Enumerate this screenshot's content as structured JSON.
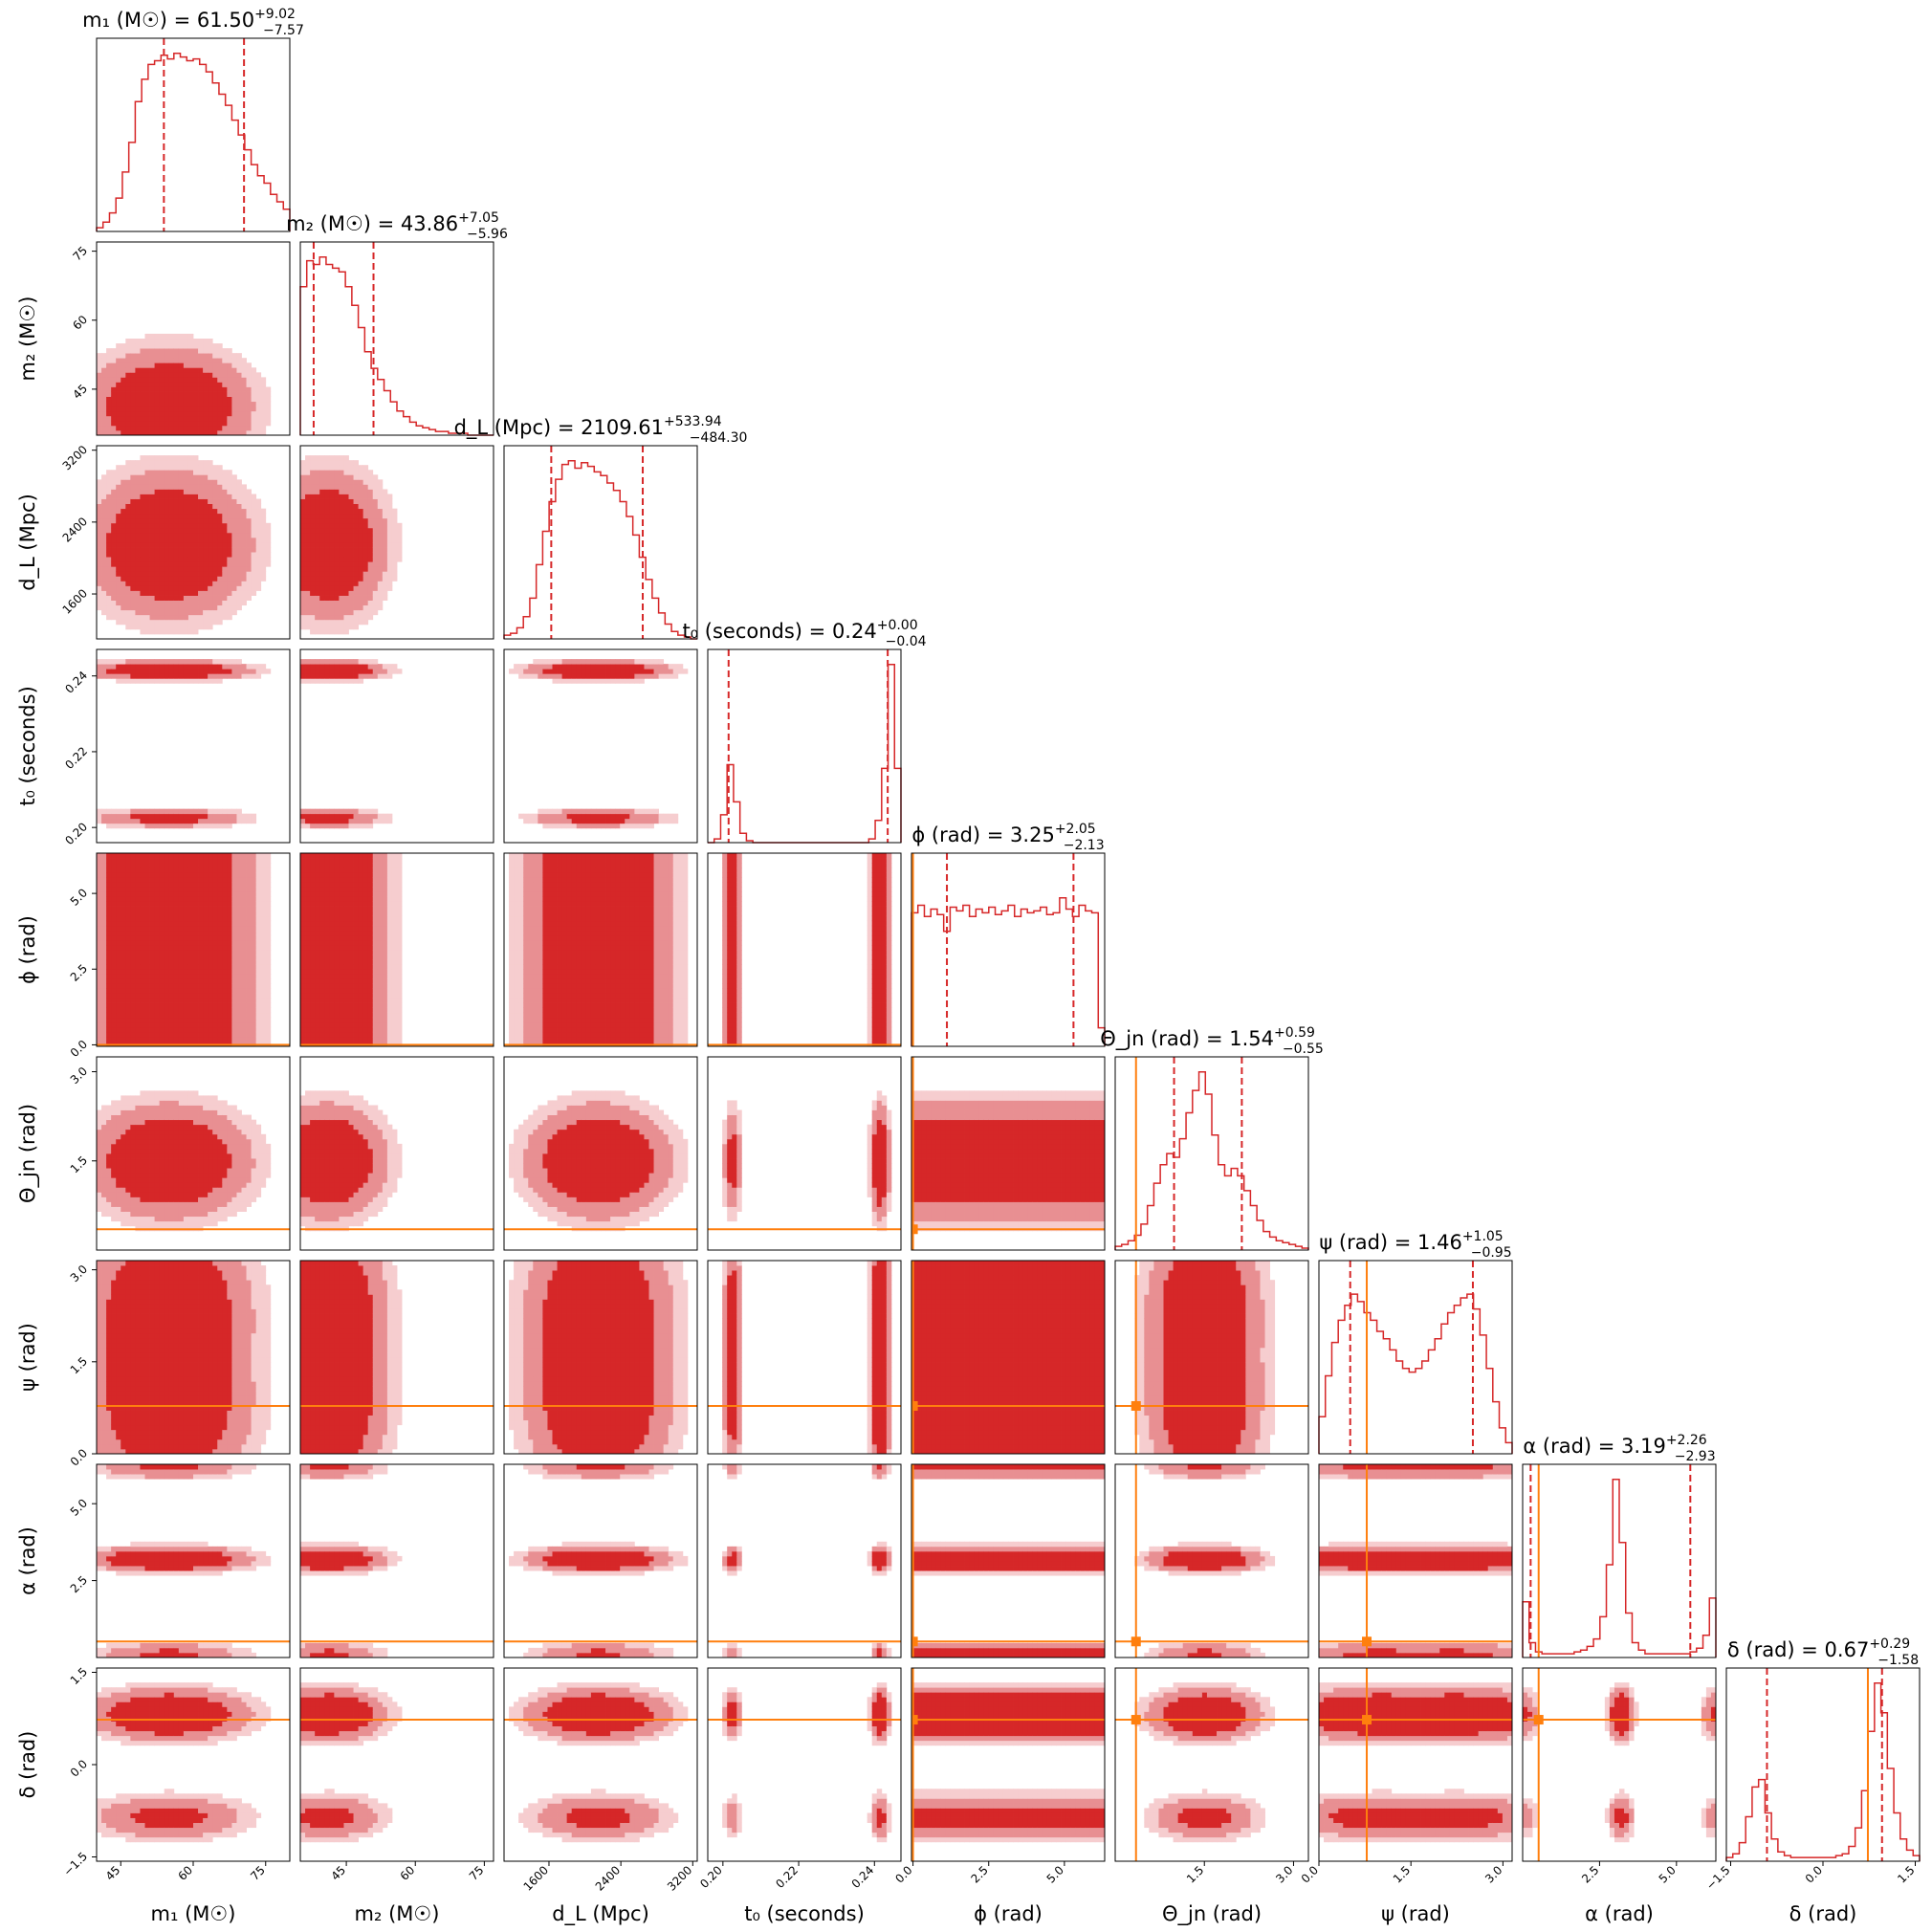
{
  "chart_data": {
    "type": "corner",
    "colors": {
      "posterior": "#d62728",
      "truth": "#ff7f0e"
    },
    "parameters": [
      {
        "key": "m1",
        "label": "m₁ (M☉)",
        "title": "m₁ (M☉) = 61.50",
        "median": 61.5,
        "plus": "+9.02",
        "minus": "−7.57",
        "range": [
          40,
          80
        ],
        "ticks": [
          45,
          60,
          75
        ],
        "tick_labels": [
          "45",
          "60",
          "75"
        ],
        "q_lo": 53.93,
        "q_hi": 70.52,
        "truth": null,
        "hist": [
          0.02,
          0.05,
          0.1,
          0.18,
          0.32,
          0.48,
          0.7,
          0.82,
          0.9,
          0.92,
          0.95,
          0.93,
          0.96,
          0.94,
          0.92,
          0.93,
          0.9,
          0.86,
          0.8,
          0.74,
          0.68,
          0.6,
          0.52,
          0.44,
          0.36,
          0.3,
          0.26,
          0.2,
          0.16,
          0.12
        ],
        "modes": [
          {
            "m": 55,
            "s": 8,
            "w": 1
          }
        ]
      },
      {
        "key": "m2",
        "label": "m₂ (M☉)",
        "title": "m₂ (M☉) = 43.86",
        "median": 43.86,
        "plus": "+7.05",
        "minus": "−5.96",
        "range": [
          35,
          77
        ],
        "ticks": [
          45,
          60,
          75
        ],
        "tick_labels": [
          "45",
          "60",
          "75"
        ],
        "q_lo": 37.9,
        "q_hi": 50.91,
        "truth": null,
        "hist": [
          0.8,
          0.94,
          0.92,
          0.96,
          0.92,
          0.9,
          0.88,
          0.8,
          0.7,
          0.58,
          0.45,
          0.36,
          0.3,
          0.24,
          0.18,
          0.13,
          0.1,
          0.07,
          0.05,
          0.04,
          0.03,
          0.02,
          0.02,
          0.01,
          0.01,
          0.01,
          0.0,
          0.0,
          0.0,
          0.0
        ],
        "modes": [
          {
            "m": 41,
            "s": 6,
            "w": 1
          }
        ]
      },
      {
        "key": "dL",
        "label": "d_L (Mpc)",
        "title": "d_L (Mpc) = 2109.61",
        "median": 2109.61,
        "plus": "+533.94",
        "minus": "−484.30",
        "range": [
          1100,
          3250
        ],
        "ticks": [
          1600,
          2400,
          3200
        ],
        "tick_labels": [
          "1600",
          "2400",
          "3200"
        ],
        "q_lo": 1625.31,
        "q_hi": 2643.55,
        "truth": null,
        "hist": [
          0.02,
          0.03,
          0.06,
          0.12,
          0.22,
          0.4,
          0.58,
          0.74,
          0.86,
          0.94,
          0.96,
          0.92,
          0.95,
          0.93,
          0.9,
          0.88,
          0.84,
          0.8,
          0.74,
          0.66,
          0.56,
          0.44,
          0.32,
          0.22,
          0.14,
          0.08,
          0.04,
          0.02,
          0.01,
          0.0
        ],
        "modes": [
          {
            "m": 2150,
            "s": 380,
            "w": 1
          }
        ]
      },
      {
        "key": "t0",
        "label": "t₀ (seconds)",
        "title": "t₀ (seconds) = 0.24",
        "median": 0.24,
        "plus": "+0.00",
        "minus": "−0.04",
        "range": [
          0.196,
          0.247
        ],
        "ticks": [
          0.2,
          0.22,
          0.24
        ],
        "tick_labels": [
          "0.20",
          "0.22",
          "0.24"
        ],
        "q_lo": 0.2015,
        "q_hi": 0.2435,
        "truth": null,
        "hist": [
          0.0,
          0.02,
          0.15,
          0.42,
          0.22,
          0.05,
          0.01,
          0.0,
          0.0,
          0.0,
          0.0,
          0.0,
          0.0,
          0.0,
          0.0,
          0.0,
          0.0,
          0.0,
          0.0,
          0.0,
          0.0,
          0.0,
          0.0,
          0.0,
          0.0,
          0.02,
          0.12,
          0.4,
          0.96,
          0.4
        ],
        "modes": [
          {
            "m": 0.2025,
            "s": 0.0012,
            "w": 0.45
          },
          {
            "m": 0.2415,
            "s": 0.0012,
            "w": 1
          }
        ]
      },
      {
        "key": "phi",
        "label": "ϕ (rad)",
        "title": "ϕ (rad) = 3.25",
        "median": 3.25,
        "plus": "+2.05",
        "minus": "−2.13",
        "range": [
          -0.05,
          6.33
        ],
        "ticks": [
          0.0,
          2.5,
          5.0
        ],
        "tick_labels": [
          "0.0",
          "2.5",
          "5.0"
        ],
        "q_lo": 1.12,
        "q_hi": 5.3,
        "truth": 0.0,
        "hist": [
          0.72,
          0.76,
          0.7,
          0.74,
          0.71,
          0.62,
          0.75,
          0.73,
          0.76,
          0.7,
          0.74,
          0.72,
          0.75,
          0.71,
          0.73,
          0.76,
          0.7,
          0.74,
          0.72,
          0.73,
          0.75,
          0.71,
          0.72,
          0.8,
          0.74,
          0.7,
          0.76,
          0.73,
          0.72,
          0.1
        ],
        "modes": [
          {
            "m": 3.1,
            "s": 100,
            "w": 1
          }
        ]
      },
      {
        "key": "theta",
        "label": "Θ_jn (rad)",
        "title": "Θ_jn (rad) = 1.54",
        "median": 1.54,
        "plus": "+0.59",
        "minus": "−0.55",
        "range": [
          0.0,
          3.25
        ],
        "ticks": [
          1.5,
          3.0
        ],
        "tick_labels": [
          "1.5",
          "3.0"
        ],
        "q_lo": 0.99,
        "q_hi": 2.13,
        "truth": 0.35,
        "hist": [
          0.02,
          0.03,
          0.05,
          0.08,
          0.14,
          0.24,
          0.36,
          0.46,
          0.52,
          0.5,
          0.6,
          0.74,
          0.86,
          0.96,
          0.84,
          0.62,
          0.46,
          0.4,
          0.44,
          0.4,
          0.32,
          0.24,
          0.16,
          0.1,
          0.07,
          0.05,
          0.04,
          0.03,
          0.02,
          0.01
        ],
        "modes": [
          {
            "m": 1.5,
            "s": 0.45,
            "w": 1
          }
        ]
      },
      {
        "key": "psi",
        "label": "ψ (rad)",
        "title": "ψ (rad) = 1.46",
        "median": 1.46,
        "plus": "+1.05",
        "minus": "−0.95",
        "range": [
          0.0,
          3.15
        ],
        "ticks": [
          0.0,
          1.5,
          3.0
        ],
        "tick_labels": [
          "0.0",
          "1.5",
          "3.0"
        ],
        "q_lo": 0.51,
        "q_hi": 2.51,
        "truth": 0.78,
        "hist": [
          0.2,
          0.42,
          0.6,
          0.72,
          0.8,
          0.86,
          0.82,
          0.76,
          0.72,
          0.66,
          0.62,
          0.56,
          0.5,
          0.46,
          0.44,
          0.46,
          0.5,
          0.56,
          0.62,
          0.7,
          0.76,
          0.8,
          0.84,
          0.86,
          0.78,
          0.64,
          0.46,
          0.28,
          0.14,
          0.06
        ],
        "modes": [
          {
            "m": 0.8,
            "s": 0.7,
            "w": 1
          },
          {
            "m": 2.4,
            "s": 0.7,
            "w": 1
          }
        ]
      },
      {
        "key": "alpha",
        "label": "α (rad)",
        "title": "α (rad) = 3.19",
        "median": 3.19,
        "plus": "+2.26",
        "minus": "−2.93",
        "range": [
          0.0,
          6.28
        ],
        "ticks": [
          2.5,
          5.0
        ],
        "tick_labels": [
          "2.5",
          "5.0"
        ],
        "q_lo": 0.26,
        "q_hi": 5.45,
        "truth": 0.52,
        "hist": [
          0.3,
          0.08,
          0.03,
          0.02,
          0.02,
          0.02,
          0.02,
          0.02,
          0.03,
          0.04,
          0.06,
          0.1,
          0.22,
          0.5,
          0.96,
          0.62,
          0.24,
          0.08,
          0.04,
          0.02,
          0.02,
          0.02,
          0.02,
          0.02,
          0.02,
          0.02,
          0.03,
          0.05,
          0.12,
          0.32
        ],
        "modes": [
          {
            "m": 3.2,
            "s": 0.2,
            "w": 1
          },
          {
            "m": 0.1,
            "s": 0.2,
            "w": 0.35
          },
          {
            "m": 6.2,
            "s": 0.2,
            "w": 0.35
          }
        ]
      },
      {
        "key": "delta",
        "label": "δ (rad)",
        "title": "δ (rad) = 0.67",
        "median": 0.67,
        "plus": "+0.29",
        "minus": "−1.58",
        "range": [
          -1.57,
          1.57
        ],
        "ticks": [
          -1.5,
          0.0,
          1.5
        ],
        "tick_labels": [
          "−1.5",
          "0.0",
          "1.5"
        ],
        "q_lo": -0.91,
        "q_hi": 0.96,
        "truth": 0.73,
        "hist": [
          0.02,
          0.04,
          0.1,
          0.24,
          0.4,
          0.44,
          0.26,
          0.12,
          0.05,
          0.03,
          0.02,
          0.02,
          0.02,
          0.02,
          0.02,
          0.02,
          0.02,
          0.03,
          0.04,
          0.08,
          0.18,
          0.38,
          0.7,
          0.96,
          0.8,
          0.5,
          0.26,
          0.12,
          0.06,
          0.03
        ],
        "modes": [
          {
            "m": -0.85,
            "s": 0.18,
            "w": 0.45
          },
          {
            "m": 0.82,
            "s": 0.2,
            "w": 1
          }
        ]
      }
    ]
  }
}
